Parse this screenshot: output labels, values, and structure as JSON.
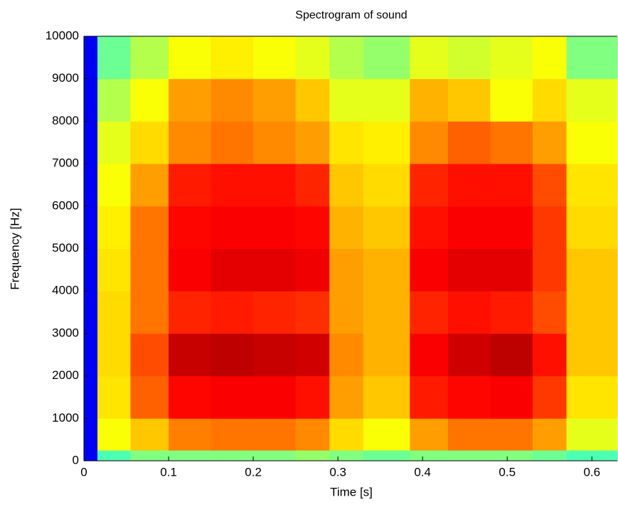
{
  "chart_data": {
    "type": "heatmap",
    "title": "Spectrogram of sound",
    "x_label": "Time [s]",
    "y_label": "Frequency [Hz]",
    "colormap": "jet",
    "clim": [
      0,
      1
    ],
    "x_bins": [
      0,
      0.016,
      0.055,
      0.1,
      0.15,
      0.2,
      0.25,
      0.29,
      0.33,
      0.385,
      0.43,
      0.48,
      0.53,
      0.57,
      0.63
    ],
    "y_bins": [
      0,
      250,
      1000,
      2000,
      3000,
      4000,
      5000,
      6000,
      7000,
      8000,
      9000,
      10000
    ],
    "values": [
      [
        0.12,
        0.45,
        0.5,
        0.5,
        0.5,
        0.5,
        0.52,
        0.5,
        0.48,
        0.5,
        0.5,
        0.5,
        0.48,
        0.45
      ],
      [
        0.12,
        0.62,
        0.68,
        0.75,
        0.76,
        0.76,
        0.74,
        0.66,
        0.62,
        0.72,
        0.76,
        0.76,
        0.72,
        0.6
      ],
      [
        0.12,
        0.65,
        0.78,
        0.87,
        0.88,
        0.88,
        0.86,
        0.72,
        0.68,
        0.85,
        0.87,
        0.88,
        0.82,
        0.65
      ],
      [
        0.12,
        0.66,
        0.8,
        0.93,
        0.94,
        0.93,
        0.92,
        0.74,
        0.7,
        0.88,
        0.92,
        0.94,
        0.86,
        0.68
      ],
      [
        0.12,
        0.66,
        0.76,
        0.84,
        0.85,
        0.84,
        0.83,
        0.72,
        0.7,
        0.84,
        0.86,
        0.85,
        0.8,
        0.68
      ],
      [
        0.12,
        0.65,
        0.76,
        0.88,
        0.9,
        0.9,
        0.89,
        0.72,
        0.7,
        0.88,
        0.9,
        0.9,
        0.82,
        0.68
      ],
      [
        0.12,
        0.64,
        0.76,
        0.87,
        0.88,
        0.88,
        0.87,
        0.7,
        0.68,
        0.86,
        0.88,
        0.88,
        0.82,
        0.66
      ],
      [
        0.12,
        0.62,
        0.72,
        0.85,
        0.86,
        0.86,
        0.84,
        0.68,
        0.66,
        0.84,
        0.86,
        0.86,
        0.8,
        0.65
      ],
      [
        0.12,
        0.6,
        0.66,
        0.74,
        0.76,
        0.74,
        0.72,
        0.65,
        0.64,
        0.74,
        0.78,
        0.76,
        0.72,
        0.62
      ],
      [
        0.12,
        0.55,
        0.62,
        0.72,
        0.74,
        0.72,
        0.68,
        0.6,
        0.6,
        0.7,
        0.68,
        0.62,
        0.66,
        0.6
      ],
      [
        0.12,
        0.48,
        0.55,
        0.62,
        0.64,
        0.62,
        0.6,
        0.55,
        0.52,
        0.6,
        0.58,
        0.6,
        0.62,
        0.5
      ]
    ],
    "xlim": [
      0,
      0.63
    ],
    "ylim": [
      0,
      10000
    ],
    "xticks": [
      0,
      0.1,
      0.2,
      0.3,
      0.4,
      0.5,
      0.6
    ],
    "yticks": [
      0,
      1000,
      2000,
      3000,
      4000,
      5000,
      6000,
      7000,
      8000,
      9000,
      10000
    ]
  }
}
